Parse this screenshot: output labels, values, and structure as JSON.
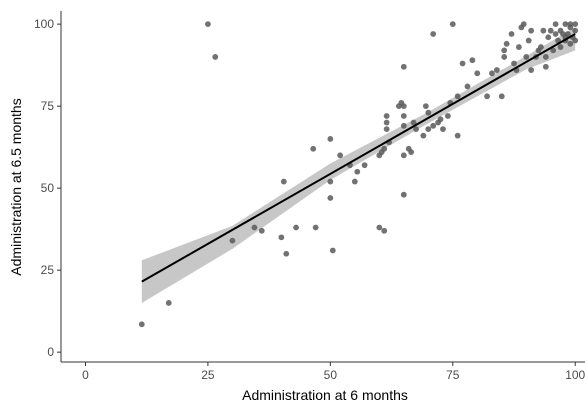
{
  "chart_data": {
    "type": "scatter",
    "xlabel": "Administration at 6 months",
    "ylabel": "Administration at 6.5 months",
    "xlim": [
      -5,
      102
    ],
    "ylim": [
      -3,
      104
    ],
    "x_ticks": [
      "0",
      "25",
      "50",
      "75",
      "100"
    ],
    "y_ticks": [
      "0",
      "25",
      "50",
      "75",
      "100"
    ],
    "grid": false,
    "points": [
      [
        11.5,
        8.5
      ],
      [
        17,
        15
      ],
      [
        25,
        100
      ],
      [
        26.5,
        90
      ],
      [
        30,
        34
      ],
      [
        34.5,
        38
      ],
      [
        36,
        37
      ],
      [
        40,
        35
      ],
      [
        41,
        30
      ],
      [
        40.5,
        52
      ],
      [
        43,
        38
      ],
      [
        46.5,
        62
      ],
      [
        47,
        38
      ],
      [
        50,
        65
      ],
      [
        50.5,
        31
      ],
      [
        50,
        47
      ],
      [
        50,
        52
      ],
      [
        52,
        60
      ],
      [
        54,
        57
      ],
      [
        55,
        52
      ],
      [
        55.5,
        55
      ],
      [
        57,
        57
      ],
      [
        60,
        60
      ],
      [
        60.5,
        61
      ],
      [
        60,
        38
      ],
      [
        61,
        37
      ],
      [
        61,
        62
      ],
      [
        61.5,
        68
      ],
      [
        61.5,
        70
      ],
      [
        61.5,
        72
      ],
      [
        62,
        64
      ],
      [
        64,
        75
      ],
      [
        64.5,
        76
      ],
      [
        65,
        48
      ],
      [
        65,
        60
      ],
      [
        65,
        69
      ],
      [
        65,
        72
      ],
      [
        65,
        75
      ],
      [
        65,
        87
      ],
      [
        66,
        62
      ],
      [
        66.5,
        61
      ],
      [
        67,
        70
      ],
      [
        67.5,
        68
      ],
      [
        69,
        66
      ],
      [
        69.5,
        75
      ],
      [
        70,
        68
      ],
      [
        70,
        73
      ],
      [
        71,
        97
      ],
      [
        71,
        69
      ],
      [
        72,
        70
      ],
      [
        72.5,
        71
      ],
      [
        73,
        68
      ],
      [
        74,
        72
      ],
      [
        74.5,
        76
      ],
      [
        75,
        100
      ],
      [
        76,
        66
      ],
      [
        76,
        78
      ],
      [
        77,
        88
      ],
      [
        78,
        81
      ],
      [
        79,
        89
      ],
      [
        80,
        85
      ],
      [
        82,
        78
      ],
      [
        83,
        85
      ],
      [
        84,
        86
      ],
      [
        85,
        78
      ],
      [
        85.5,
        90
      ],
      [
        85.5,
        92
      ],
      [
        86,
        94
      ],
      [
        87,
        97
      ],
      [
        87.5,
        88
      ],
      [
        88,
        86
      ],
      [
        88.5,
        93
      ],
      [
        89,
        99
      ],
      [
        89.5,
        100
      ],
      [
        90,
        90
      ],
      [
        90.5,
        95
      ],
      [
        91,
        98
      ],
      [
        91,
        86
      ],
      [
        92,
        90
      ],
      [
        92.5,
        92
      ],
      [
        93,
        93
      ],
      [
        93.5,
        98
      ],
      [
        94,
        87
      ],
      [
        94,
        90
      ],
      [
        94.5,
        96
      ],
      [
        95,
        98
      ],
      [
        95.5,
        92
      ],
      [
        96,
        100
      ],
      [
        96.5,
        95
      ],
      [
        97,
        98
      ],
      [
        97,
        93
      ],
      [
        97.5,
        97
      ],
      [
        98,
        100
      ],
      [
        98,
        95
      ],
      [
        98.5,
        97
      ],
      [
        99,
        99
      ],
      [
        99,
        94
      ],
      [
        99.5,
        96
      ],
      [
        100,
        100
      ],
      [
        100,
        98
      ],
      [
        100,
        95
      ],
      [
        99,
        100
      ],
      [
        98,
        96
      ],
      [
        96,
        97
      ]
    ],
    "fit_line": {
      "x": [
        11.5,
        100
      ],
      "y": [
        21.5,
        97
      ]
    },
    "confidence_band": {
      "x": [
        11.5,
        30,
        50,
        70,
        90,
        100
      ],
      "lower": [
        15,
        31.5,
        52.5,
        69.8,
        86.2,
        92
      ],
      "upper": [
        28,
        38.5,
        57.5,
        73.2,
        90.3,
        99
      ]
    },
    "colors": {
      "point": "#595959",
      "line": "#000000",
      "band": "#bdbdbd",
      "axis": "#333333"
    }
  }
}
